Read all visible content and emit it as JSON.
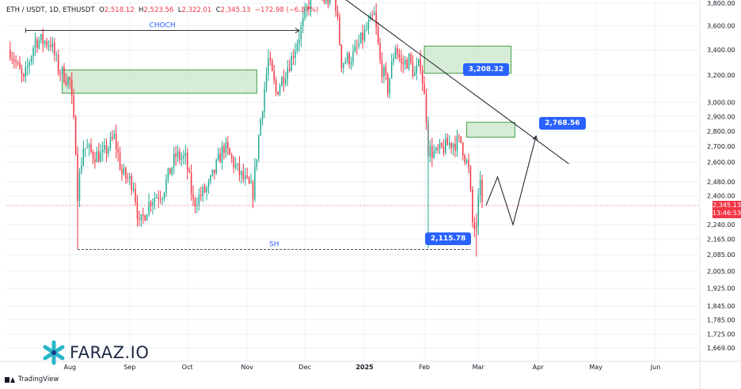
{
  "header": {
    "symbol": "ETH / USDT, 1D, ETHUSDT",
    "o_label": "O",
    "o": "2,518.12",
    "h_label": "H",
    "h": "2,523.56",
    "l_label": "L",
    "l": "2,322.01",
    "c_label": "C",
    "c": "2,345.13",
    "change": "−172.98 (−6.87%)"
  },
  "brand": {
    "tradingview": "TradingView",
    "watermark": "FARAZ.IO"
  },
  "colors": {
    "up": "#22ab94",
    "down": "#f23645",
    "zone_fill": "#c8e6c9",
    "zone_stroke": "#43a047",
    "badge": "#2962ff",
    "trendline": "#131722",
    "grid": "#eef0f3",
    "axis_text": "#131722"
  },
  "chart_data": {
    "type": "candlestick",
    "y_axis": {
      "scale": "log",
      "ylim": [
        1620,
        3800
      ],
      "ticks": [
        "3,800.00",
        "3,600.00",
        "3,400.00",
        "3,200.00",
        "3,000.00",
        "2,900.00",
        "2,800.00",
        "2,700.00",
        "2,600.00",
        "2,480.00",
        "2,400.00",
        "2,240.00",
        "2,165.00",
        "2,085.00",
        "2,005.00",
        "1,925.00",
        "1,845.00",
        "1,785.00",
        "1,725.00",
        "1,669.00"
      ]
    },
    "x_axis": {
      "ticks": [
        "Aug",
        "Sep",
        "Oct",
        "Nov",
        "Dec",
        "2025",
        "Feb",
        "Mar",
        "Apr",
        "May",
        "Jun"
      ],
      "tick_dates": [
        "2024-08-01",
        "2024-09-01",
        "2024-10-01",
        "2024-11-01",
        "2024-12-01",
        "2025-01-01",
        "2025-02-01",
        "2025-03-01",
        "2025-04-01",
        "2025-05-01",
        "2025-06-01"
      ]
    },
    "last_price": {
      "value": 2345.13,
      "label": "2,345.13",
      "countdown": "13:46:53"
    },
    "annotations": {
      "choch": {
        "label": "CHOCH",
        "price": 3560,
        "from": "2024-07-09",
        "to": "2024-11-28"
      },
      "sh": {
        "label": "SH",
        "price": 2112,
        "from": "2024-08-05",
        "to": "2025-02-25"
      },
      "badges": [
        {
          "label": "3,208.32",
          "price": 3208.32,
          "date": "2025-02-21"
        },
        {
          "label": "2,768.56",
          "price": 2768.56,
          "date": "2025-03-31"
        },
        {
          "label": "2,115.78",
          "price": 2115.78,
          "date": "2025-02-03"
        }
      ],
      "zones": [
        {
          "from": "2024-07-28",
          "to": "2024-11-06",
          "top": 3240,
          "bottom": 3065
        },
        {
          "from": "2025-02-01",
          "to": "2025-03-18",
          "top": 3430,
          "bottom": 3215
        },
        {
          "from": "2025-02-23",
          "to": "2025-03-20",
          "top": 2860,
          "bottom": 2760
        }
      ],
      "trendline": {
        "from_date": "2024-12-17",
        "from_price": 3900,
        "to_date": "2025-04-17",
        "to_price": 2590
      },
      "projection": [
        {
          "date": "2025-03-05",
          "price": 2345
        },
        {
          "date": "2025-03-11",
          "price": 2510
        },
        {
          "date": "2025-03-19",
          "price": 2240
        },
        {
          "date": "2025-03-31",
          "price": 2768
        }
      ]
    },
    "waypoints": [
      [
        "2024-07-01",
        3400
      ],
      [
        "2024-07-08",
        3150
      ],
      [
        "2024-07-14",
        3480
      ],
      [
        "2024-07-22",
        3460
      ],
      [
        "2024-07-26",
        3250
      ],
      [
        "2024-08-01",
        3150
      ],
      [
        "2024-08-04",
        2700
      ],
      [
        "2024-08-05",
        2420
      ],
      [
        "2024-08-08",
        2700
      ],
      [
        "2024-08-13",
        2650
      ],
      [
        "2024-08-18",
        2640
      ],
      [
        "2024-08-24",
        2760
      ],
      [
        "2024-08-28",
        2530
      ],
      [
        "2024-09-03",
        2470
      ],
      [
        "2024-09-06",
        2230
      ],
      [
        "2024-09-12",
        2380
      ],
      [
        "2024-09-18",
        2420
      ],
      [
        "2024-09-25",
        2640
      ],
      [
        "2024-09-30",
        2620
      ],
      [
        "2024-10-04",
        2360
      ],
      [
        "2024-10-12",
        2450
      ],
      [
        "2024-10-20",
        2700
      ],
      [
        "2024-10-28",
        2530
      ],
      [
        "2024-11-04",
        2420
      ],
      [
        "2024-11-08",
        2880
      ],
      [
        "2024-11-12",
        3320
      ],
      [
        "2024-11-16",
        3070
      ],
      [
        "2024-11-24",
        3330
      ],
      [
        "2024-11-30",
        3620
      ],
      [
        "2024-12-06",
        3970
      ],
      [
        "2024-12-12",
        3800
      ],
      [
        "2024-12-16",
        3950
      ],
      [
        "2024-12-20",
        3300
      ],
      [
        "2024-12-26",
        3350
      ],
      [
        "2025-01-06",
        3690
      ],
      [
        "2025-01-09",
        3300
      ],
      [
        "2025-01-13",
        3100
      ],
      [
        "2025-01-17",
        3440
      ],
      [
        "2025-01-20",
        3280
      ],
      [
        "2025-01-24",
        3320
      ],
      [
        "2025-01-27",
        3200
      ],
      [
        "2025-01-30",
        3300
      ],
      [
        "2025-02-02",
        2900
      ],
      [
        "2025-02-03",
        2680
      ],
      [
        "2025-02-07",
        2650
      ],
      [
        "2025-02-14",
        2720
      ],
      [
        "2025-02-20",
        2730
      ],
      [
        "2025-02-24",
        2550
      ],
      [
        "2025-02-26",
        2250
      ],
      [
        "2025-02-28",
        2200
      ],
      [
        "2025-03-02",
        2520
      ],
      [
        "2025-03-03",
        2345
      ]
    ]
  }
}
